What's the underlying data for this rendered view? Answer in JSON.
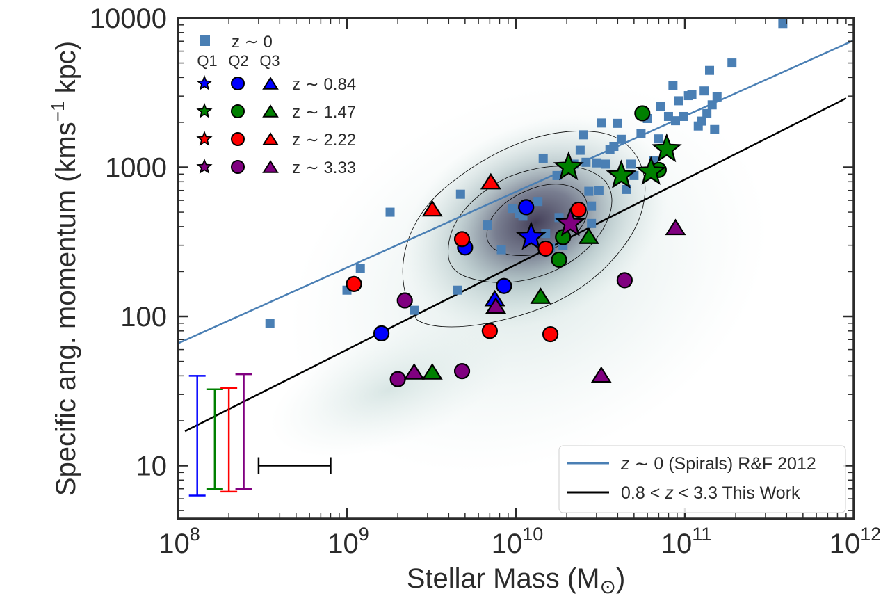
{
  "chart_data": {
    "type": "scatter",
    "xlabel": "Stellar Mass (M",
    "xlabel_sub": "⊙",
    "xlabel_end": ")",
    "ylabel_pre": "Specific ang. momentum (kms",
    "ylabel_sup": "−1",
    "ylabel_post": " kpc)",
    "x_scale": "log",
    "y_scale": "log",
    "xlim": [
      100000000,
      1000000000000
    ],
    "ylim": [
      4.4,
      10000
    ],
    "x_ticks": [
      {
        "value": 100000000,
        "base": "10",
        "exp": "8"
      },
      {
        "value": 1000000000,
        "base": "10",
        "exp": "9"
      },
      {
        "value": 10000000000,
        "base": "10",
        "exp": "10"
      },
      {
        "value": 100000000000,
        "base": "10",
        "exp": "11"
      },
      {
        "value": 1000000000000,
        "base": "10",
        "exp": "12"
      }
    ],
    "y_ticks": [
      {
        "value": 10,
        "label": "10"
      },
      {
        "value": 100,
        "label": "100"
      },
      {
        "value": 1000,
        "label": "1000"
      },
      {
        "value": 10000,
        "label": "10000"
      }
    ],
    "grid": false,
    "colors": {
      "z0": "#4a7fb4",
      "z084": "#0000ff",
      "z147": "#008000",
      "z222": "#ff0000",
      "z333": "#800080",
      "fit": "#000000",
      "density_dark": "#3b3550",
      "density_light": "#a9c5c2"
    },
    "legend_top": {
      "placement": "top-left",
      "z0_label": "z ∼ 0",
      "quartile_headers": [
        "Q1",
        "Q2",
        "Q3"
      ],
      "rows": [
        {
          "label": "z ∼ 0.84",
          "color": "#0000ff"
        },
        {
          "label": "z ∼ 1.47",
          "color": "#008000"
        },
        {
          "label": "z ∼ 2.22",
          "color": "#ff0000"
        },
        {
          "label": "z ∼ 3.33",
          "color": "#800080"
        }
      ]
    },
    "legend_lines": {
      "placement": "lower-right",
      "entries": [
        {
          "pre": "z",
          "mid": " ∼ 0",
          "post": " (Spirals) R&F 2012",
          "color": "#4a7fb4"
        },
        {
          "pre": "0.8 < ",
          "mid": "z",
          "post": " < 3.3 This Work",
          "color": "#000000"
        }
      ]
    },
    "lines": [
      {
        "name": "z ∼ 0 (Spirals) R&F 2012",
        "x": [
          100000000,
          1000000000000
        ],
        "y": [
          66,
          7100
        ],
        "color": "#4a7fb4"
      },
      {
        "name": "0.8 < z < 3.3 This Work",
        "x": [
          110000000,
          900000000000
        ],
        "y": [
          17,
          2900
        ],
        "color": "#000000"
      }
    ],
    "z0_points": {
      "x": [
        350000000,
        1000000000,
        1200000000,
        1800000000,
        2500000000,
        4500000000,
        4700000000,
        6800000000,
        8200000000,
        9500000000,
        10500000000,
        11000000000,
        13500000000,
        14500000000,
        15000000000,
        16000000000,
        17500000000,
        18000000000,
        19000000000,
        24000000000,
        25000000000,
        26000000000,
        27000000000,
        28000000000,
        30000000000,
        32000000000,
        34000000000,
        36000000000,
        38000000000,
        40000000000,
        42000000000,
        45000000000,
        48000000000,
        55000000000,
        60000000000,
        65000000000,
        72000000000,
        80000000000,
        85000000000,
        88000000000,
        92000000000,
        98000000000,
        105000000000,
        110000000000,
        120000000000,
        125000000000,
        130000000000,
        135000000000,
        140000000000,
        145000000000,
        150000000000,
        155000000000,
        190000000000,
        380000000000,
        28000000000,
        50000000000,
        70000000000,
        22000000000,
        31000000000
      ],
      "y": [
        90,
        150,
        210,
        500,
        110,
        150,
        660,
        410,
        280,
        530,
        490,
        470,
        590,
        1150,
        360,
        290,
        880,
        460,
        300,
        1300,
        1650,
        1080,
        690,
        420,
        1070,
        1980,
        1050,
        1310,
        1380,
        1970,
        1540,
        710,
        1050,
        1680,
        2120,
        1110,
        2560,
        2190,
        3540,
        2050,
        2790,
        2190,
        3020,
        3080,
        1890,
        2040,
        3250,
        2290,
        4460,
        2620,
        1790,
        2960,
        5000,
        9200,
        550,
        880,
        1550,
        1050,
        700
      ]
    },
    "density_contour_levels": 3,
    "series": [
      {
        "name": "z ∼ 0.84",
        "color": "#0000ff",
        "Q1": {
          "x": [
            12300000000
          ],
          "y": [
            340
          ]
        },
        "Q2": {
          "x": [
            1600000000,
            5000000000,
            8500000000,
            11500000000
          ],
          "y": [
            77,
            290,
            160,
            540
          ]
        },
        "Q3": {
          "x": [
            7500000000
          ],
          "y": [
            130
          ]
        }
      },
      {
        "name": "z ∼ 1.47",
        "color": "#008000",
        "Q1": {
          "x": [
            20500000000,
            42000000000,
            63000000000,
            78000000000
          ],
          "y": [
            1000,
            880,
            930,
            1320
          ]
        },
        "Q2": {
          "x": [
            18000000000,
            19000000000,
            56000000000,
            70000000000
          ],
          "y": [
            240,
            340,
            2300,
            960
          ]
        },
        "Q3": {
          "x": [
            3200000000,
            14000000000,
            27000000000
          ],
          "y": [
            42,
            135,
            340
          ]
        }
      },
      {
        "name": "z ∼ 2.22",
        "color": "#ff0000",
        "Q1": {
          "x": [],
          "y": []
        },
        "Q2": {
          "x": [
            1100000000,
            4800000000,
            7000000000,
            15000000000,
            16000000000,
            23500000000
          ],
          "y": [
            165,
            330,
            80,
            285,
            76,
            520
          ]
        },
        "Q3": {
          "x": [
            3200000000,
            7100000000
          ],
          "y": [
            520,
            790
          ]
        }
      },
      {
        "name": "z ∼ 3.33",
        "color": "#800080",
        "Q1": {
          "x": [
            21000000000
          ],
          "y": [
            420
          ]
        },
        "Q2": {
          "x": [
            2000000000,
            2200000000,
            4800000000,
            44000000000
          ],
          "y": [
            38,
            128,
            43,
            175
          ]
        },
        "Q3": {
          "x": [
            2500000000,
            7600000000,
            32000000000,
            88000000000
          ],
          "y": [
            42,
            116,
            40,
            390
          ]
        }
      }
    ],
    "error_bars": [
      {
        "color": "#0000ff",
        "x": 130000000,
        "y_low": 6.3,
        "y_high": 40
      },
      {
        "color": "#008000",
        "x": 165000000,
        "y_low": 7.0,
        "y_high": 32.5
      },
      {
        "color": "#ff0000",
        "x": 200000000,
        "y_low": 6.7,
        "y_high": 33
      },
      {
        "color": "#800080",
        "x": 245000000,
        "y_low": 7.0,
        "y_high": 41
      }
    ],
    "x_error_bar": {
      "color": "#000000",
      "x_low": 300000000,
      "x_high": 800000000,
      "y": 10
    }
  }
}
